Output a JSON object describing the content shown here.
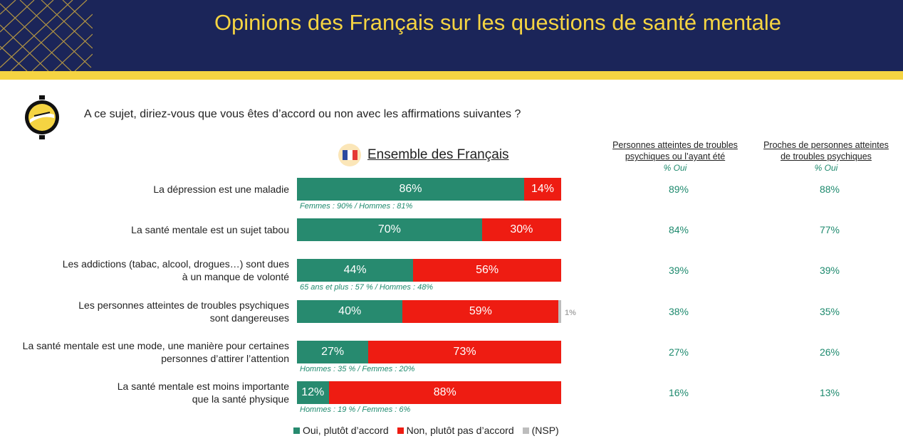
{
  "header": {
    "title": "Opinions des Français sur les questions de santé mentale"
  },
  "question": "A ce sujet, diriez-vous que vous êtes d’accord ou non avec les affirmations suivantes ?",
  "chart_data": {
    "type": "bar",
    "orientation": "horizontal",
    "stacked": true,
    "title": "Ensemble des Français",
    "categories": [
      "La dépression est une maladie",
      "La santé mentale est un sujet tabou",
      "Les addictions (tabac, alcool, drogues…) sont dues à un manque de volonté",
      "Les personnes atteintes de troubles psychiques sont dangereuses",
      "La santé mentale est une mode, une manière pour certaines personnes d’attirer l’attention",
      "La santé mentale est moins importante que la santé physique"
    ],
    "label_lines": [
      [
        "La dépression est une maladie"
      ],
      [
        "La santé mentale est un sujet tabou"
      ],
      [
        "Les addictions (tabac, alcool, drogues…) sont dues",
        "à un manque de volonté"
      ],
      [
        "Les personnes atteintes de troubles psychiques",
        "sont dangereuses"
      ],
      [
        "La santé mentale est une mode, une manière pour certaines",
        "personnes d’attirer l’attention"
      ],
      [
        "La santé mentale est moins importante",
        "que la santé physique"
      ]
    ],
    "series": [
      {
        "name": "Oui, plutôt d’accord",
        "color": "#278a6f",
        "values": [
          86,
          70,
          44,
          40,
          27,
          12
        ]
      },
      {
        "name": "Non, plutôt pas d’accord",
        "color": "#ee1c12",
        "values": [
          14,
          30,
          56,
          59,
          73,
          88
        ]
      },
      {
        "name": "(NSP)",
        "color": "#bdbdbd",
        "values": [
          0,
          0,
          0,
          1,
          0,
          0
        ]
      }
    ],
    "value_labels": [
      [
        "86%",
        "14%",
        ""
      ],
      [
        "70%",
        "30%",
        ""
      ],
      [
        "44%",
        "56%",
        ""
      ],
      [
        "40%",
        "59%",
        "1%"
      ],
      [
        "27%",
        "73%",
        ""
      ],
      [
        "12%",
        "88%",
        ""
      ]
    ],
    "notes": [
      "Femmes : 90% / Hommes : 81%",
      "",
      "65 ans et plus : 57 % / Hommes : 48%",
      "",
      "Hommes : 35 % / Femmes : 20%",
      "Hommes : 19 % / Femmes : 6%"
    ],
    "legend_position": "bottom",
    "xlim": [
      0,
      100
    ]
  },
  "side_columns": [
    {
      "header_lines": [
        "Personnes atteintes de troubles ",
        "psychiques ou l’ayant été"
      ],
      "sub": "% Oui",
      "values": [
        "89%",
        "84%",
        "39%",
        "38%",
        "27%",
        "16%"
      ]
    },
    {
      "header_lines": [
        "Proches de personnes atteintes",
        "de troubles psychiques"
      ],
      "sub": "% Oui",
      "values": [
        "88%",
        "77%",
        "39%",
        "35%",
        "26%",
        "13%"
      ]
    }
  ],
  "legend": [
    {
      "label": "Oui, plutôt d’accord",
      "color": "#278a6f"
    },
    {
      "label": "Non, plutôt pas d’accord",
      "color": "#ee1c12"
    },
    {
      "label": "(NSP)",
      "color": "#bdbdbd"
    }
  ],
  "colors": {
    "header_bg": "#1b2559",
    "accent_yellow": "#f5d442",
    "oui_green": "#278a6f",
    "non_red": "#ee1c12",
    "nsp_grey": "#bdbdbd"
  },
  "icons": {
    "logo": "yellow-circle-logo-icon",
    "flag": "french-flag-icon"
  }
}
